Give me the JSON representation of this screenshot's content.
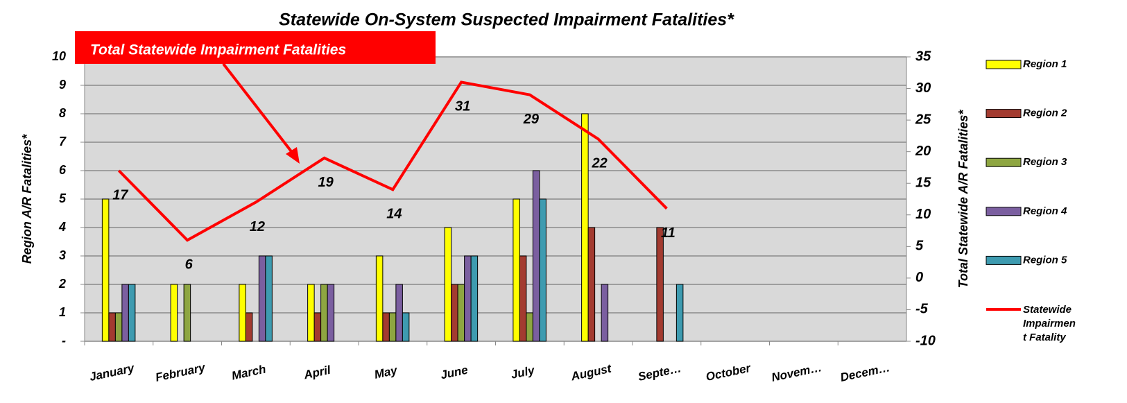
{
  "chart_data": {
    "type": "bar",
    "title": "Statewide On-System Suspected Impairment Fatalities*",
    "annotation": "Total Statewide Impairment Fatalities",
    "y_label": "Region A/R Fatalities*",
    "y2_label": "Total Statewide A/R Fatalities*",
    "categories": [
      "January",
      "February",
      "March",
      "April",
      "May",
      "June",
      "July",
      "August",
      "Septe…",
      "October",
      "Novem…",
      "Decem…"
    ],
    "ylim": [
      0,
      10
    ],
    "yticks": [
      {
        "value": 0,
        "label": "-"
      },
      1,
      2,
      3,
      4,
      5,
      6,
      7,
      8,
      9,
      10
    ],
    "y2lim": [
      -10,
      35
    ],
    "y2ticks": [
      -10,
      -5,
      0,
      5,
      10,
      15,
      20,
      25,
      30,
      35
    ],
    "grid": true,
    "legend": "right",
    "series": [
      {
        "name": "Region 1",
        "color": "#ffff00",
        "values": [
          5,
          2,
          2,
          2,
          3,
          4,
          5,
          8,
          0,
          null,
          null,
          null
        ]
      },
      {
        "name": "Region 2",
        "color": "#a33b30",
        "values": [
          1,
          0,
          1,
          1,
          1,
          2,
          3,
          4,
          4,
          null,
          null,
          null
        ]
      },
      {
        "name": "Region 3",
        "color": "#8ea641",
        "values": [
          1,
          2,
          0,
          2,
          1,
          2,
          1,
          0,
          0,
          null,
          null,
          null
        ]
      },
      {
        "name": "Region 4",
        "color": "#7b5fa0",
        "values": [
          2,
          0,
          3,
          2,
          2,
          3,
          6,
          2,
          0,
          null,
          null,
          null
        ]
      },
      {
        "name": "Region 5",
        "color": "#3e9bb0",
        "values": [
          2,
          0,
          3,
          0,
          1,
          3,
          5,
          0,
          2,
          null,
          null,
          null
        ]
      },
      {
        "name": "Statewide Impairment Fatality",
        "type": "line",
        "axis": "y2",
        "color": "#ff0000",
        "values": [
          17,
          6,
          12,
          19,
          14,
          31,
          29,
          22,
          11,
          null,
          null,
          null
        ]
      }
    ]
  }
}
